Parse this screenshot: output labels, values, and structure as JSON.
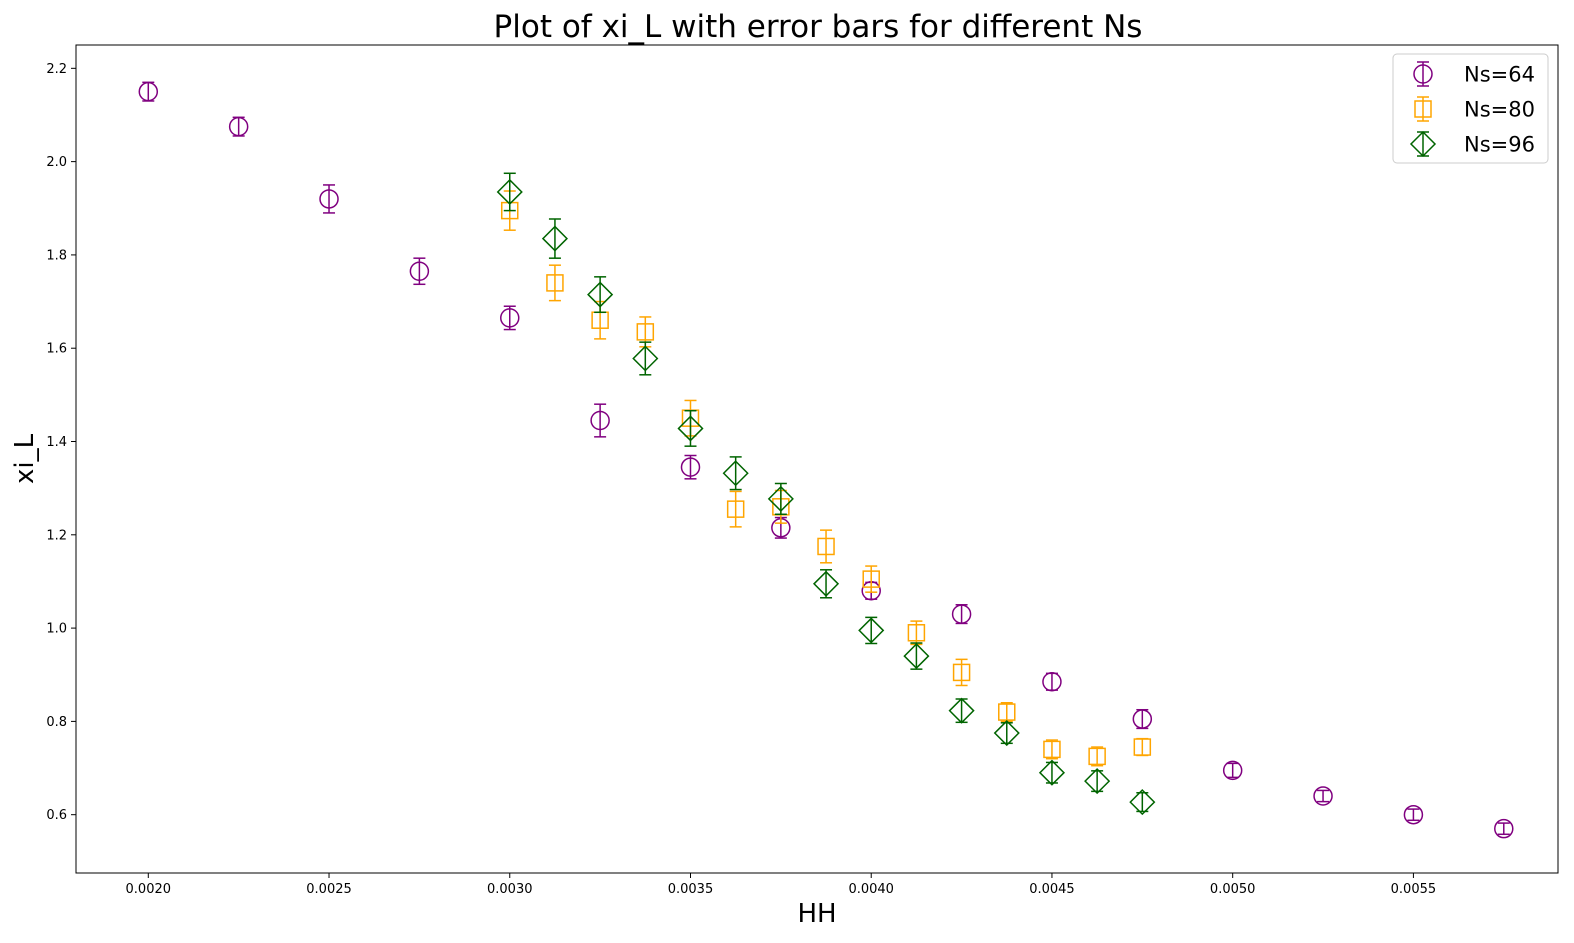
{
  "chart_data": {
    "type": "scatter",
    "title": "Plot of xi_L with error bars for different Ns",
    "xlabel": "HH",
    "ylabel": "xi_L",
    "xlim": [
      0.0018,
      0.0059
    ],
    "ylim": [
      0.475,
      2.25
    ],
    "xticks": [
      "0.0020",
      "0.0025",
      "0.0030",
      "0.0035",
      "0.0040",
      "0.0045",
      "0.0050",
      "0.0055"
    ],
    "xtick_values": [
      0.002,
      0.0025,
      0.003,
      0.0035,
      0.004,
      0.0045,
      0.005,
      0.0055
    ],
    "yticks": [
      "0.6",
      "0.8",
      "1.0",
      "1.2",
      "1.4",
      "1.6",
      "1.8",
      "2.0",
      "2.2"
    ],
    "ytick_values": [
      0.6,
      0.8,
      1.0,
      1.2,
      1.4,
      1.6,
      1.8,
      2.0,
      2.2
    ],
    "grid": false,
    "legend_position": "top-right",
    "series": [
      {
        "name": "Ns=64",
        "marker": "circle",
        "color": "#800080",
        "x": [
          0.002,
          0.00225,
          0.0025,
          0.00275,
          0.003,
          0.00325,
          0.0035,
          0.00375,
          0.004,
          0.00425,
          0.0045,
          0.00475,
          0.005,
          0.00525,
          0.0055,
          0.00575
        ],
        "y": [
          2.15,
          2.075,
          1.92,
          1.765,
          1.665,
          1.445,
          1.345,
          1.215,
          1.08,
          1.03,
          0.885,
          0.805,
          0.695,
          0.64,
          0.6,
          0.57
        ],
        "err": [
          0.02,
          0.02,
          0.03,
          0.028,
          0.025,
          0.035,
          0.025,
          0.022,
          0.018,
          0.02,
          0.018,
          0.02,
          0.015,
          0.012,
          0.012,
          0.012
        ]
      },
      {
        "name": "Ns=80",
        "marker": "square",
        "color": "#ffa500",
        "x": [
          0.003,
          0.003125,
          0.00325,
          0.003375,
          0.0035,
          0.003625,
          0.00375,
          0.003875,
          0.004,
          0.004125,
          0.00425,
          0.004375,
          0.0045,
          0.004625,
          0.00475
        ],
        "y": [
          1.895,
          1.74,
          1.66,
          1.635,
          1.45,
          1.255,
          1.26,
          1.175,
          1.105,
          0.99,
          0.905,
          0.82,
          0.74,
          0.725,
          0.745
        ],
        "err": [
          0.042,
          0.038,
          0.04,
          0.032,
          0.038,
          0.038,
          0.035,
          0.035,
          0.028,
          0.025,
          0.028,
          0.02,
          0.02,
          0.02,
          0.018
        ]
      },
      {
        "name": "Ns=96",
        "marker": "diamond",
        "color": "#006400",
        "x": [
          0.003,
          0.003125,
          0.00325,
          0.003375,
          0.0035,
          0.003625,
          0.00375,
          0.003875,
          0.004,
          0.004125,
          0.00425,
          0.004375,
          0.0045,
          0.004625,
          0.00475
        ],
        "y": [
          1.935,
          1.835,
          1.715,
          1.578,
          1.428,
          1.332,
          1.277,
          1.095,
          0.995,
          0.94,
          0.823,
          0.775,
          0.69,
          0.672,
          0.627
        ],
        "err": [
          0.04,
          0.042,
          0.038,
          0.035,
          0.038,
          0.035,
          0.033,
          0.03,
          0.028,
          0.028,
          0.025,
          0.022,
          0.022,
          0.022,
          0.02
        ]
      }
    ]
  }
}
